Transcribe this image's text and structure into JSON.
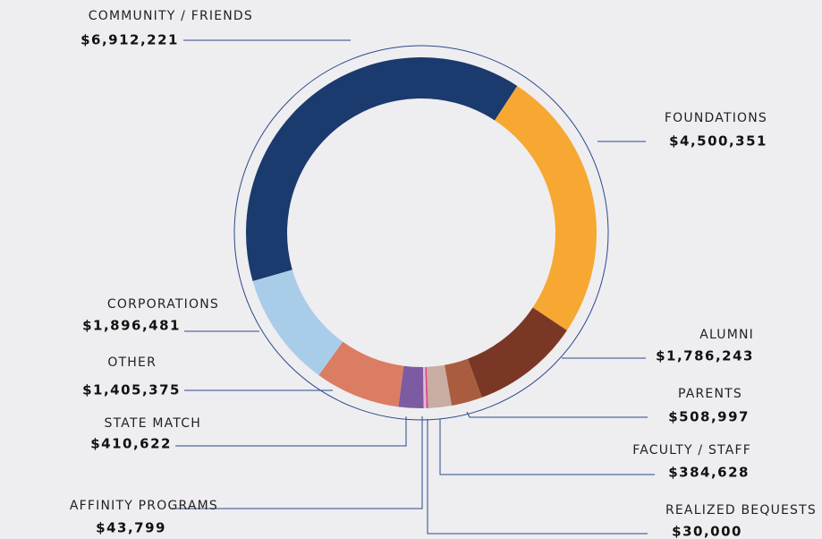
{
  "chart_data": {
    "type": "donut",
    "categories": [
      "COMMUNITY / FRIENDS",
      "FOUNDATIONS",
      "ALUMNI",
      "PARENTS",
      "FACULTY / STAFF",
      "REALIZED BEQUESTS",
      "AFFINITY PROGRAMS",
      "STATE MATCH",
      "OTHER",
      "CORPORATIONS"
    ],
    "values": [
      6912221,
      4500351,
      1786243,
      508997,
      384628,
      30000,
      43799,
      410622,
      1405375,
      1896481
    ],
    "value_labels": [
      "$6,912,221",
      "$4,500,351",
      "$1,786,243",
      "$508,997",
      "$384,628",
      "$30,000",
      "$43,799",
      "$410,622",
      "$1,405,375",
      "$1,896,481"
    ],
    "colors": [
      "#1b3a6e",
      "#f6a832",
      "#7b3726",
      "#a95d3e",
      "#c9aca2",
      "#d6498a",
      "#e7b9cf",
      "#7c5ba2",
      "#db7d62",
      "#a9cde9"
    ]
  }
}
